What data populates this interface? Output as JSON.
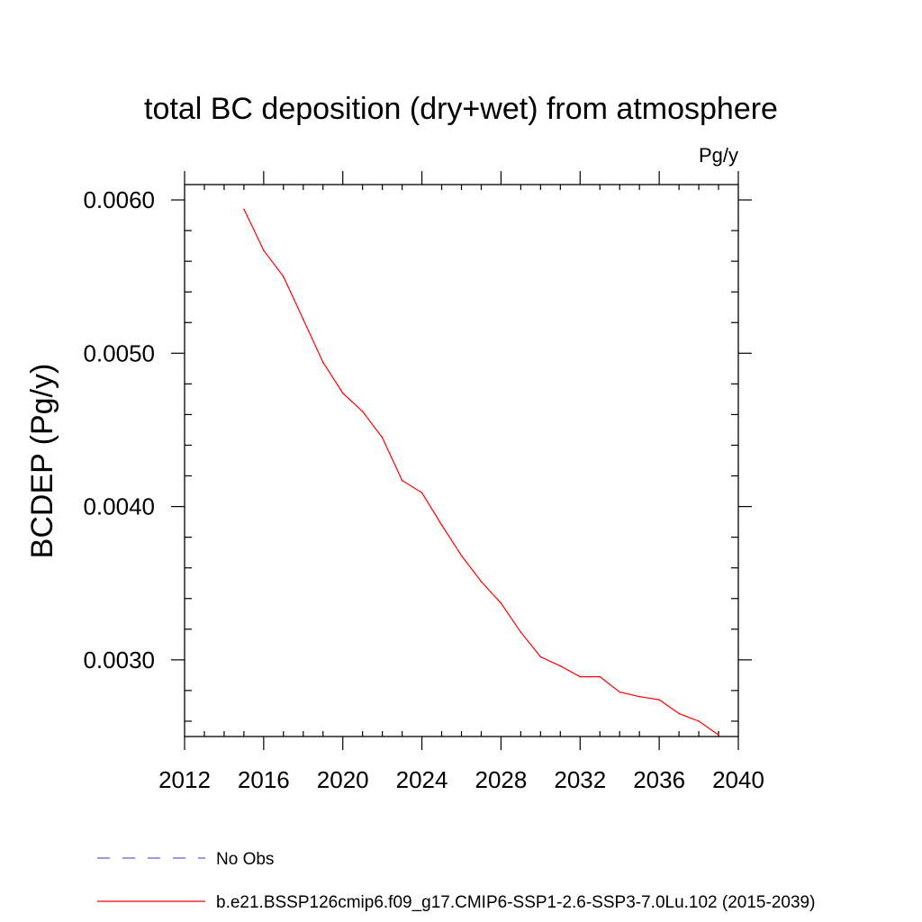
{
  "chart_data": {
    "type": "line",
    "title": "total BC deposition (dry+wet) from atmosphere",
    "units_label": "Pg/y",
    "ylabel": "BCDEP  (Pg/y)",
    "xlabel": "",
    "xlim": [
      2012,
      2040
    ],
    "ylim": [
      0.0025,
      0.0061
    ],
    "x_ticks": [
      2012,
      2016,
      2020,
      2024,
      2028,
      2032,
      2036,
      2040
    ],
    "x_tick_labels": [
      "2012",
      "2016",
      "2020",
      "2024",
      "2028",
      "2032",
      "2036",
      "2040"
    ],
    "y_ticks": [
      0.003,
      0.004,
      0.005,
      0.006
    ],
    "y_tick_labels": [
      "0.0030",
      "0.0040",
      "0.0050",
      "0.0060"
    ],
    "grid": false,
    "legend_position": "bottom",
    "series": [
      {
        "name": "No Obs",
        "color": "#6a5acd",
        "dashed": true,
        "x": [],
        "y": []
      },
      {
        "name": "b.e21.BSSP126cmip6.f09_g17.CMIP6-SSP1-2.6-SSP3-7.0Lu.102 (2015-2039)",
        "color": "#ff0000",
        "dashed": false,
        "x": [
          2015,
          2016,
          2017,
          2018,
          2019,
          2020,
          2021,
          2022,
          2023,
          2024,
          2025,
          2026,
          2027,
          2028,
          2029,
          2030,
          2031,
          2032,
          2033,
          2034,
          2035,
          2036,
          2037,
          2038,
          2039
        ],
        "y": [
          0.00594,
          0.00567,
          0.0055,
          0.00522,
          0.00494,
          0.00474,
          0.00462,
          0.00445,
          0.00417,
          0.00409,
          0.00388,
          0.00368,
          0.00351,
          0.00337,
          0.00318,
          0.00302,
          0.00296,
          0.00289,
          0.00289,
          0.00279,
          0.00276,
          0.00274,
          0.00265,
          0.0026,
          0.00251
        ]
      }
    ]
  }
}
